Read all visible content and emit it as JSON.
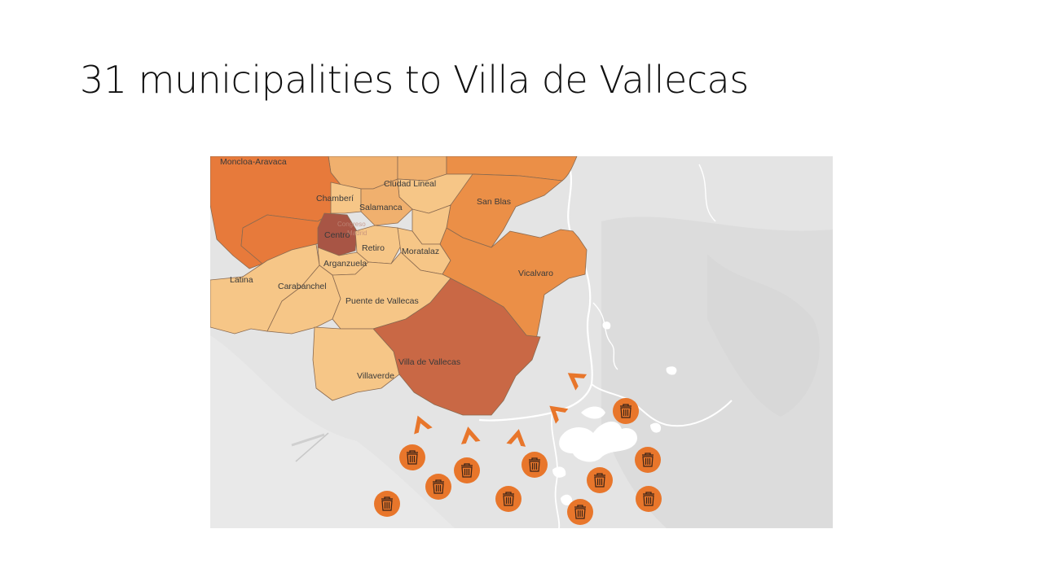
{
  "slide": {
    "title": "31 municipalities to Villa de Vallecas"
  },
  "map": {
    "colors": {
      "background": "#e4e4e4",
      "river": "#ffffff",
      "scale": [
        "#f6c687",
        "#f0b06e",
        "#eb8f47",
        "#e77a3b",
        "#c96845",
        "#a85545"
      ],
      "marker": "#e8762b",
      "arrow": "#e8762b"
    },
    "districts": [
      {
        "id": "moncloa-aravaca",
        "label": "Moncloa-Aravaca",
        "level": 3
      },
      {
        "id": "chamberi",
        "label": "Chamberí",
        "level": 1
      },
      {
        "id": "ciudad-lineal",
        "label": "Ciudad Lineal",
        "level": 0
      },
      {
        "id": "salamanca",
        "label": "Salamanca",
        "level": 1
      },
      {
        "id": "san-blas",
        "label": "San Blas",
        "level": 2
      },
      {
        "id": "centro",
        "label": "Centro",
        "level": 5
      },
      {
        "id": "retiro",
        "label": "Retiro",
        "level": 0
      },
      {
        "id": "moratalaz",
        "label": "Moratalaz",
        "level": 0
      },
      {
        "id": "arganzuela",
        "label": "Arganzuela",
        "level": 0
      },
      {
        "id": "vicalvaro",
        "label": "Vicalvaro",
        "level": 2
      },
      {
        "id": "latina",
        "label": "Latina",
        "level": 0
      },
      {
        "id": "carabanchel",
        "label": "Carabanchel",
        "level": 0
      },
      {
        "id": "puente-de-vallecas",
        "label": "Puente de Vallecas",
        "level": 0
      },
      {
        "id": "villa-de-vallecas",
        "label": "Villa de Vallecas",
        "level": 4
      },
      {
        "id": "villaverde",
        "label": "Villaverde",
        "level": 0
      }
    ],
    "faint_labels": [
      "Congreso",
      "Madrid"
    ],
    "municipality_marker_icon": "trash-can-icon",
    "direction_arrow_icon": "chevron-arrow-icon"
  }
}
